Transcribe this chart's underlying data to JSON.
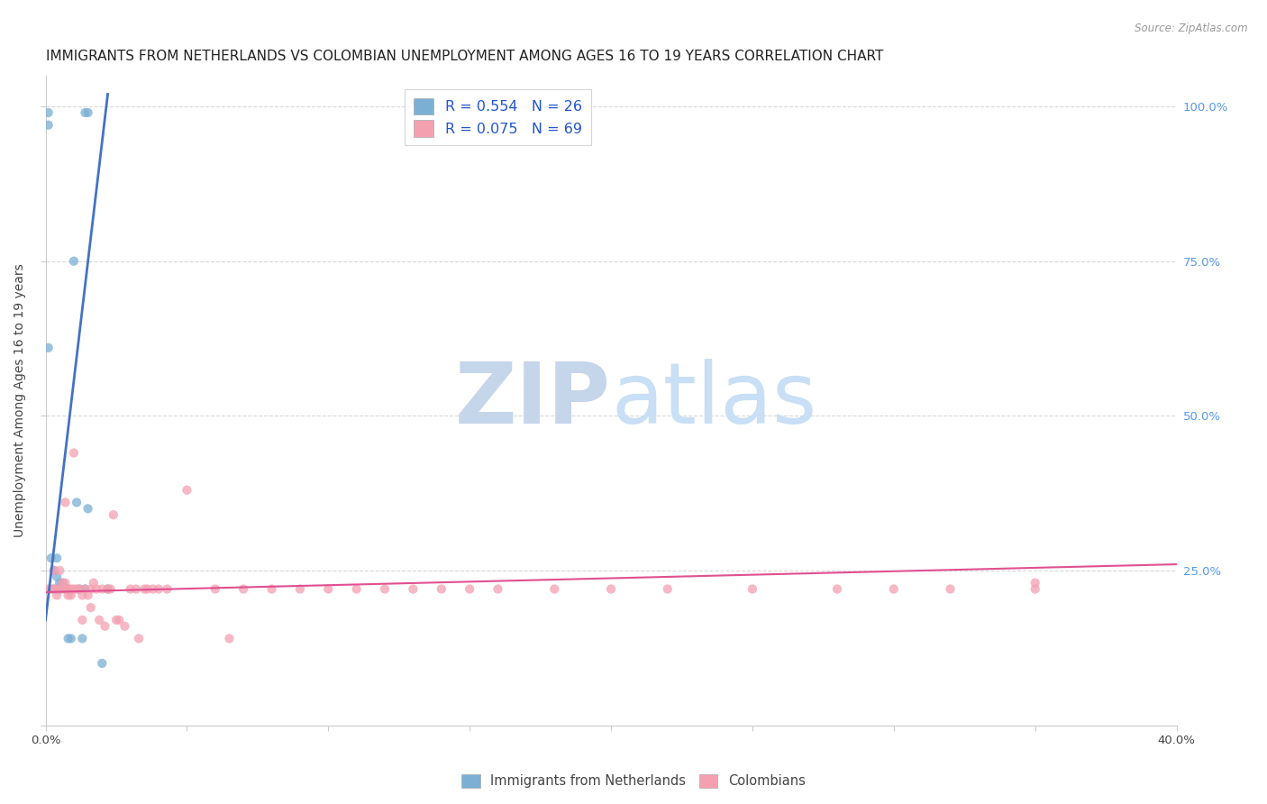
{
  "title": "IMMIGRANTS FROM NETHERLANDS VS COLOMBIAN UNEMPLOYMENT AMONG AGES 16 TO 19 YEARS CORRELATION CHART",
  "source": "Source: ZipAtlas.com",
  "ylabel": "Unemployment Among Ages 16 to 19 years",
  "right_yticks": [
    "100.0%",
    "75.0%",
    "50.0%",
    "25.0%"
  ],
  "right_ytick_vals": [
    1.0,
    0.75,
    0.5,
    0.25
  ],
  "watermark_zip": "ZIP",
  "watermark_atlas": "atlas",
  "legend_entries": [
    {
      "label": "R = 0.554   N = 26",
      "color": "#a8c4e0"
    },
    {
      "label": "R = 0.075   N = 69",
      "color": "#f4a8b8"
    }
  ],
  "legend_bottom": [
    "Immigrants from Netherlands",
    "Colombians"
  ],
  "blue_scatter_x": [
    0.001,
    0.001,
    0.014,
    0.015,
    0.001,
    0.002,
    0.003,
    0.003,
    0.004,
    0.004,
    0.004,
    0.005,
    0.005,
    0.006,
    0.007,
    0.007,
    0.008,
    0.009,
    0.01,
    0.011,
    0.012,
    0.013,
    0.014,
    0.015,
    0.02,
    0.022
  ],
  "blue_scatter_y": [
    0.99,
    0.97,
    0.99,
    0.99,
    0.61,
    0.27,
    0.25,
    0.22,
    0.27,
    0.24,
    0.22,
    0.23,
    0.22,
    0.23,
    0.22,
    0.22,
    0.14,
    0.14,
    0.75,
    0.36,
    0.22,
    0.14,
    0.22,
    0.35,
    0.1,
    0.22
  ],
  "pink_scatter_x": [
    0.001,
    0.002,
    0.003,
    0.003,
    0.004,
    0.004,
    0.005,
    0.005,
    0.006,
    0.006,
    0.007,
    0.007,
    0.007,
    0.008,
    0.008,
    0.008,
    0.009,
    0.009,
    0.01,
    0.01,
    0.011,
    0.012,
    0.013,
    0.013,
    0.014,
    0.015,
    0.016,
    0.016,
    0.017,
    0.018,
    0.019,
    0.02,
    0.021,
    0.022,
    0.023,
    0.024,
    0.025,
    0.026,
    0.028,
    0.03,
    0.032,
    0.033,
    0.035,
    0.036,
    0.038,
    0.04,
    0.043,
    0.05,
    0.06,
    0.065,
    0.07,
    0.08,
    0.09,
    0.1,
    0.11,
    0.12,
    0.13,
    0.14,
    0.15,
    0.16,
    0.18,
    0.2,
    0.22,
    0.25,
    0.28,
    0.3,
    0.32,
    0.35,
    0.35
  ],
  "pink_scatter_y": [
    0.22,
    0.22,
    0.22,
    0.25,
    0.22,
    0.21,
    0.22,
    0.25,
    0.22,
    0.23,
    0.22,
    0.23,
    0.36,
    0.22,
    0.21,
    0.22,
    0.21,
    0.22,
    0.22,
    0.44,
    0.22,
    0.22,
    0.17,
    0.21,
    0.22,
    0.21,
    0.22,
    0.19,
    0.23,
    0.22,
    0.17,
    0.22,
    0.16,
    0.22,
    0.22,
    0.34,
    0.17,
    0.17,
    0.16,
    0.22,
    0.22,
    0.14,
    0.22,
    0.22,
    0.22,
    0.22,
    0.22,
    0.38,
    0.22,
    0.14,
    0.22,
    0.22,
    0.22,
    0.22,
    0.22,
    0.22,
    0.22,
    0.22,
    0.22,
    0.22,
    0.22,
    0.22,
    0.22,
    0.22,
    0.22,
    0.22,
    0.22,
    0.22,
    0.23
  ],
  "blue_line_x": [
    0.0,
    0.022
  ],
  "blue_line_y": [
    0.17,
    1.02
  ],
  "pink_line_x": [
    0.0,
    0.4
  ],
  "pink_line_y": [
    0.215,
    0.26
  ],
  "xlim": [
    0.0,
    0.4
  ],
  "ylim": [
    0.0,
    1.05
  ],
  "blue_color": "#7bafd4",
  "pink_color": "#f4a0b0",
  "blue_line_color": "#4472c4",
  "pink_line_color": "#e05090",
  "grid_color": "#d8d8d8",
  "bg_color": "#ffffff",
  "title_fontsize": 11,
  "axis_label_fontsize": 10,
  "tick_fontsize": 9.5,
  "scatter_size": 55,
  "scatter_alpha": 0.75,
  "watermark_color_zip": "#c5d5ea",
  "watermark_color_atlas": "#c8dff5",
  "watermark_fontsize": 68
}
